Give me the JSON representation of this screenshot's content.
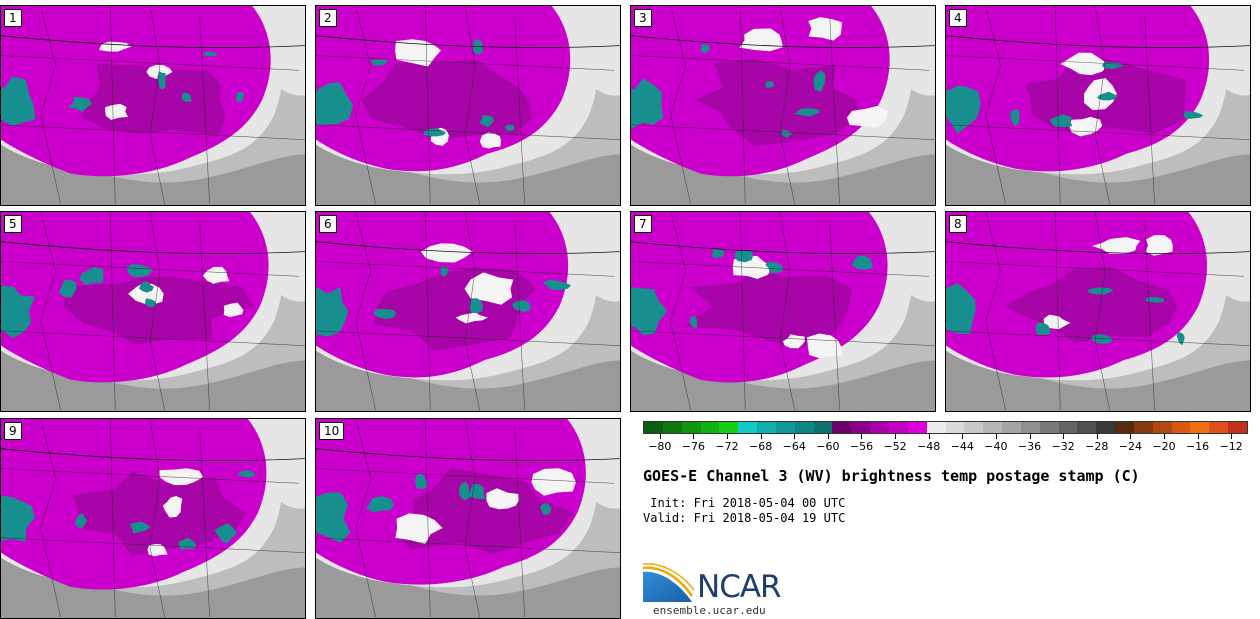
{
  "panels": [
    {
      "label": "1"
    },
    {
      "label": "2"
    },
    {
      "label": "3"
    },
    {
      "label": "4"
    },
    {
      "label": "5"
    },
    {
      "label": "6"
    },
    {
      "label": "7"
    },
    {
      "label": "8"
    },
    {
      "label": "9"
    },
    {
      "label": "10"
    }
  ],
  "colorbar": {
    "colors": [
      "#0b5e0b",
      "#0d7a0d",
      "#109510",
      "#13b013",
      "#17cf17",
      "#14c9c9",
      "#12adad",
      "#109999",
      "#0d8585",
      "#0a7070",
      "#6b006b",
      "#8a008a",
      "#a800a8",
      "#c200c2",
      "#dd00dd",
      "#ececec",
      "#dadada",
      "#c8c8c8",
      "#b6b6b6",
      "#a4a4a4",
      "#8f8f8f",
      "#7a7a7a",
      "#656565",
      "#505050",
      "#3a3a3a",
      "#5a2a10",
      "#8a3a10",
      "#b04a12",
      "#d85a10",
      "#f07010",
      "#e0501a",
      "#c0301a"
    ],
    "tick_labels": [
      "−80",
      "−76",
      "−72",
      "−68",
      "−64",
      "−60",
      "−56",
      "−52",
      "−48",
      "−44",
      "−40",
      "−36",
      "−32",
      "−28",
      "−24",
      "−20",
      "−16",
      "−12"
    ],
    "min": -82,
    "max": -10
  },
  "title": "GOES-E Channel 3 (WV) brightness temp postage stamp (C)",
  "init_line": " Init: Fri 2018-05-04 00 UTC",
  "valid_line": "Valid: Fri 2018-05-04 19 UTC",
  "logo_text": "NCAR",
  "website": "ensemble.ucar.edu",
  "palette": {
    "magenta": "#cc00cc",
    "dark_purple": "#7a0a7a",
    "teal": "#178f8f",
    "light_gray": "#e6e6e6",
    "mid_gray": "#bdbdbd",
    "dark_gray": "#9a9a9a"
  }
}
